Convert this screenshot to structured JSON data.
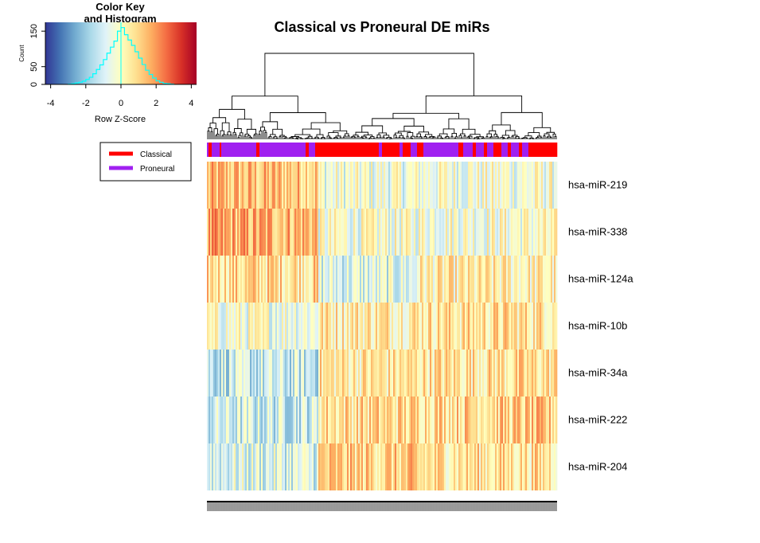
{
  "chart_data": {
    "type": "heatmap",
    "title": "Classical vs Proneural DE miRs",
    "rows": [
      "hsa-miR-219",
      "hsa-miR-338",
      "hsa-miR-124a",
      "hsa-miR-10b",
      "hsa-miR-34a",
      "hsa-miR-222",
      "hsa-miR-204"
    ],
    "groups": [
      {
        "name": "Classical",
        "color": "#ff0000"
      },
      {
        "name": "Proneural",
        "color": "#a020f0"
      }
    ],
    "color_key": {
      "title": "Color Key\nand Histogram",
      "title_line1": "Color Key",
      "title_line2": "and Histogram",
      "xlabel": "Row Z-Score",
      "ylabel": "Count",
      "xticks": [
        "-4",
        "-2",
        "0",
        "2",
        "4"
      ],
      "yticks": [
        "0",
        "50",
        "150"
      ],
      "xlim": [
        -4.3,
        4.3
      ],
      "ylim": [
        0,
        175
      ],
      "palette": [
        "#313695",
        "#4575b4",
        "#74add1",
        "#abd9e9",
        "#e0f3f8",
        "#ffffbf",
        "#fee090",
        "#fdae61",
        "#f46d43",
        "#d73027",
        "#a50026"
      ],
      "histogram": {
        "bins": [
          -3.0,
          -2.8,
          -2.6,
          -2.4,
          -2.2,
          -2.0,
          -1.8,
          -1.6,
          -1.4,
          -1.2,
          -1.0,
          -0.8,
          -0.6,
          -0.4,
          -0.2,
          0.0,
          0.2,
          0.4,
          0.6,
          0.8,
          1.0,
          1.2,
          1.4,
          1.6,
          1.8,
          2.0,
          2.2,
          2.4,
          2.6,
          2.8
        ],
        "counts": [
          1,
          2,
          4,
          6,
          9,
          14,
          20,
          30,
          42,
          55,
          70,
          88,
          105,
          122,
          150,
          160,
          140,
          125,
          110,
          92,
          74,
          56,
          40,
          28,
          18,
          10,
          6,
          3,
          2,
          1
        ]
      },
      "histogram_color": "#00ffff"
    },
    "legend": {
      "position": "left",
      "entries": [
        "Classical",
        "Proneural"
      ]
    },
    "n_samples": 220
  }
}
